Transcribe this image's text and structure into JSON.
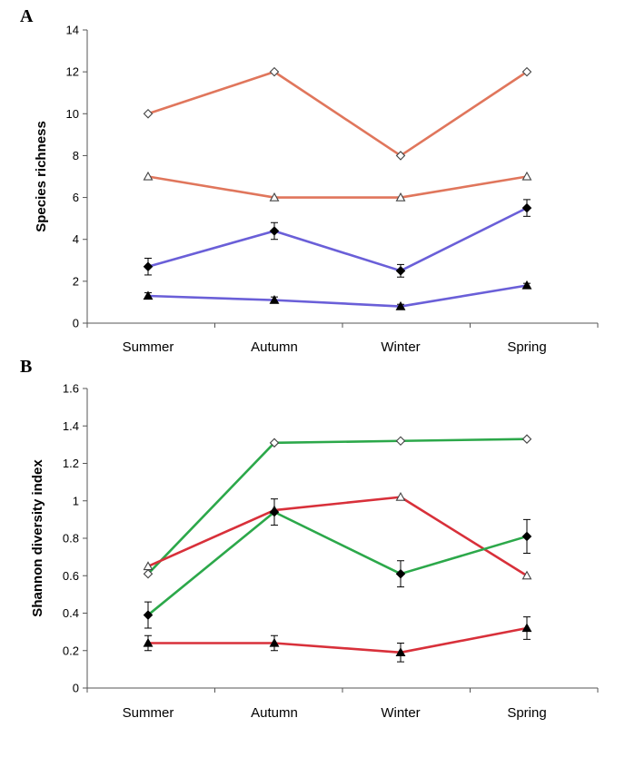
{
  "chart_data": [
    {
      "type": "line",
      "panel": "A",
      "title": "",
      "xlabel": "",
      "ylabel": "Species richness",
      "ylim": [
        0,
        14
      ],
      "yticks": [
        "0",
        "2",
        "4",
        "6",
        "8",
        "10",
        "12",
        "14"
      ],
      "categories": [
        "Summer",
        "Autumn",
        "Winter",
        "Spring"
      ],
      "grid": false,
      "series": [
        {
          "values": [
            10,
            12,
            8,
            12
          ],
          "color": "#e0765c",
          "marker": "open-diamond"
        },
        {
          "values": [
            7,
            6,
            6,
            7
          ],
          "color": "#e0765c",
          "marker": "open-triangle"
        },
        {
          "values": [
            2.7,
            4.4,
            2.5,
            5.5
          ],
          "errors": [
            0.4,
            0.4,
            0.3,
            0.4
          ],
          "color": "#6a5fd8",
          "marker": "filled-diamond"
        },
        {
          "values": [
            1.3,
            1.1,
            0.8,
            1.8
          ],
          "errors": [
            0.15,
            0.15,
            0.1,
            0.1
          ],
          "color": "#6a5fd8",
          "marker": "filled-triangle"
        }
      ]
    },
    {
      "type": "line",
      "panel": "B",
      "title": "",
      "xlabel": "",
      "ylabel": "Shannon diversity index",
      "ylim": [
        0,
        1.6
      ],
      "yticks": [
        "0",
        "0.2",
        "0.4",
        "0.6",
        "0.8",
        "1",
        "1.2",
        "1.4",
        "1.6"
      ],
      "categories": [
        "Summer",
        "Autumn",
        "Winter",
        "Spring"
      ],
      "grid": false,
      "series": [
        {
          "values": [
            0.61,
            1.31,
            1.32,
            1.33
          ],
          "color": "#2ca84a",
          "marker": "open-diamond"
        },
        {
          "values": [
            0.65,
            0.95,
            1.02,
            0.6
          ],
          "color": "#d8303a",
          "marker": "open-triangle"
        },
        {
          "values": [
            0.39,
            0.94,
            0.61,
            0.81
          ],
          "errors": [
            0.07,
            0.07,
            0.07,
            0.09
          ],
          "color": "#2ca84a",
          "marker": "filled-diamond"
        },
        {
          "values": [
            0.24,
            0.24,
            0.19,
            0.32
          ],
          "errors": [
            0.04,
            0.04,
            0.05,
            0.06
          ],
          "color": "#d8303a",
          "marker": "filled-triangle"
        }
      ]
    }
  ]
}
